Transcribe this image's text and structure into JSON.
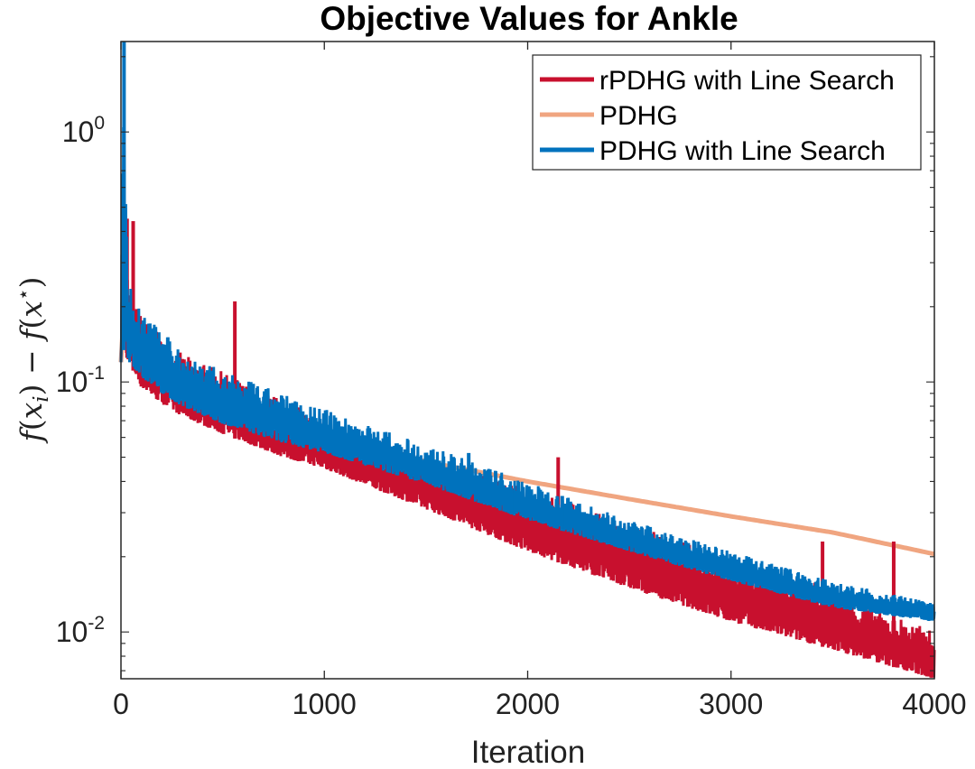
{
  "chart_data": {
    "type": "line",
    "title": "Objective Values for Ankle",
    "xlabel": "Iteration",
    "ylabel": "f(x_i) − f(x*)",
    "ylabel_parts": {
      "f1": "f",
      "open1": "(",
      "x1": "x",
      "sub": "i",
      "close1": ")",
      "minus": " − ",
      "f2": "f",
      "open2": "(",
      "x2": "x",
      "sup": "⋆",
      "close2": ")"
    },
    "xlim": [
      0,
      4000
    ],
    "ylim": [
      0.0065,
      2.3
    ],
    "yscale": "log",
    "x_ticks": [
      {
        "value": 0,
        "label": "0"
      },
      {
        "value": 1000,
        "label": "1000"
      },
      {
        "value": 2000,
        "label": "2000"
      },
      {
        "value": 3000,
        "label": "3000"
      },
      {
        "value": 4000,
        "label": "4000"
      }
    ],
    "y_ticks": [
      {
        "value": 0.01,
        "base": "10",
        "exp": "-2"
      },
      {
        "value": 0.1,
        "base": "10",
        "exp": "-1"
      },
      {
        "value": 1,
        "base": "10",
        "exp": "0"
      }
    ],
    "legend_position": "top-right",
    "series": [
      {
        "name": "rPDHG with Line Search",
        "color": "#C8102E",
        "noisy": true,
        "x": [
          0,
          10,
          20,
          40,
          100,
          200,
          300,
          500,
          800,
          1000,
          1500,
          2000,
          2500,
          3000,
          3500,
          4000
        ],
        "upper": [
          0.12,
          1.0,
          0.5,
          0.22,
          0.19,
          0.15,
          0.13,
          0.11,
          0.085,
          0.07,
          0.05,
          0.038,
          0.027,
          0.02,
          0.015,
          0.01
        ],
        "lower": [
          0.12,
          0.15,
          0.13,
          0.12,
          0.095,
          0.082,
          0.073,
          0.062,
          0.05,
          0.045,
          0.031,
          0.021,
          0.015,
          0.011,
          0.0085,
          0.0065
        ],
        "spikes": [
          {
            "x": 30,
            "y": 0.45
          },
          {
            "x": 60,
            "y": 0.44
          },
          {
            "x": 560,
            "y": 0.21
          },
          {
            "x": 2150,
            "y": 0.05
          },
          {
            "x": 3450,
            "y": 0.023
          },
          {
            "x": 3800,
            "y": 0.023
          }
        ]
      },
      {
        "name": "PDHG",
        "color": "#F0A580",
        "noisy": false,
        "x": [
          0,
          10,
          50,
          100,
          200,
          300,
          500,
          800,
          1000,
          1500,
          2000,
          2500,
          3000,
          3500,
          4000
        ],
        "values": [
          0.12,
          0.17,
          0.14,
          0.125,
          0.105,
          0.095,
          0.082,
          0.068,
          0.062,
          0.048,
          0.04,
          0.034,
          0.029,
          0.025,
          0.0205
        ]
      },
      {
        "name": "PDHG with Line Search",
        "color": "#0072BD",
        "noisy": true,
        "x": [
          0,
          8,
          20,
          40,
          100,
          200,
          300,
          500,
          800,
          1000,
          1500,
          2000,
          2500,
          3000,
          3500,
          4000
        ],
        "upper": [
          0.12,
          2.3,
          0.65,
          0.25,
          0.2,
          0.16,
          0.135,
          0.11,
          0.09,
          0.078,
          0.056,
          0.04,
          0.028,
          0.021,
          0.016,
          0.013
        ],
        "lower": [
          0.12,
          0.14,
          0.13,
          0.12,
          0.105,
          0.09,
          0.08,
          0.068,
          0.057,
          0.052,
          0.039,
          0.028,
          0.021,
          0.016,
          0.0125,
          0.011
        ],
        "spikes": [
          {
            "x": 15,
            "y": 2.3
          },
          {
            "x": 1710,
            "y": 0.052
          },
          {
            "x": 1920,
            "y": 0.037
          },
          {
            "x": 2170,
            "y": 0.035
          }
        ]
      }
    ]
  }
}
